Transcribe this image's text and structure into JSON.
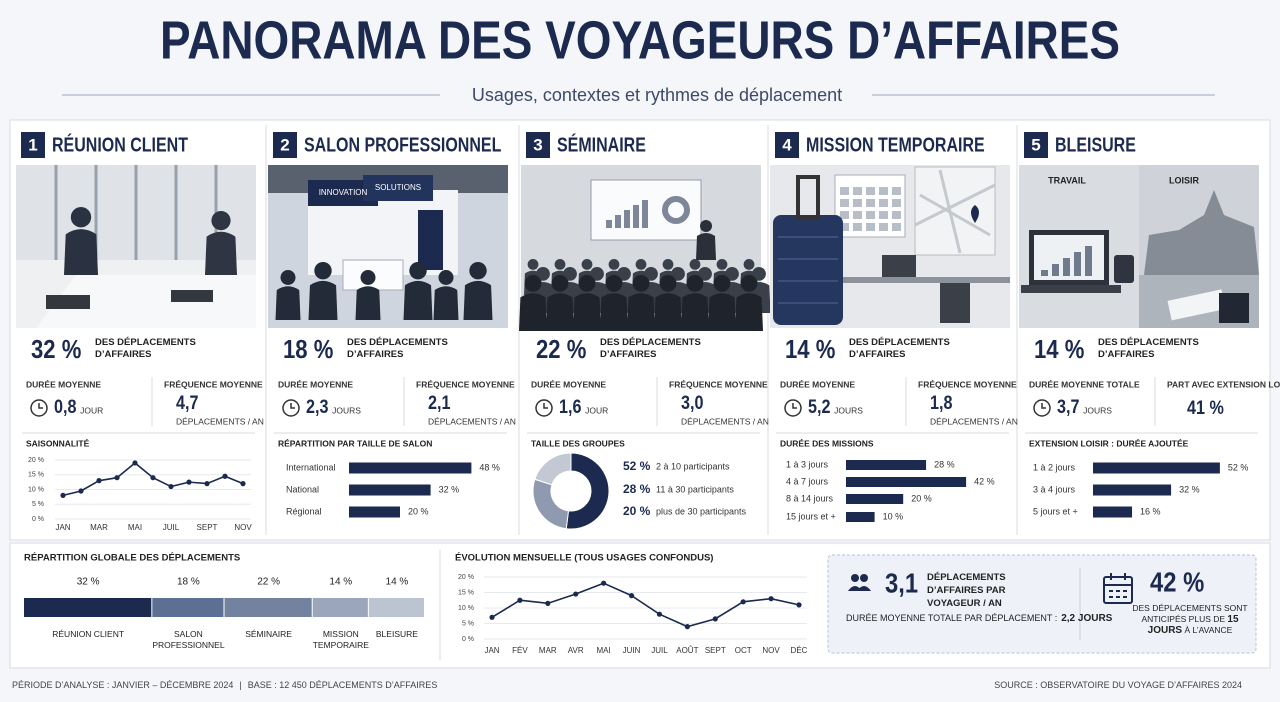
{
  "header": {
    "title": "PANORAMA DES VOYAGEURS D’AFFAIRES",
    "subtitle": "Usages, contextes et rythmes de déplacement"
  },
  "cards": [
    {
      "number": "1",
      "title": "RÉUNION CLIENT",
      "share": "32 %",
      "share_text": "DES DÉPLACEMENTS D’AFFAIRES",
      "stats": [
        {
          "label": "DURÉE MOYENNE",
          "value": "0,8",
          "unit": "JOUR"
        },
        {
          "label": "FRÉQUENCE MOYENNE",
          "value": "4,7",
          "unit": "DÉPLACEMENTS / AN"
        }
      ],
      "chart": {
        "type": "line",
        "title": "SAISONNALITÉ",
        "categories": [
          "JAN",
          null,
          "MAR",
          null,
          "MAI",
          null,
          "JUIL",
          null,
          "SEPT",
          null,
          "NOV"
        ],
        "values": [
          8,
          9.5,
          13,
          14,
          19,
          14,
          11,
          12.5,
          12,
          14.5,
          12
        ],
        "color": "#1b2a4e",
        "ylim": [
          0,
          20
        ],
        "yticks": [
          {
            "value": 0,
            "label": "0 %"
          },
          {
            "value": 5,
            "label": "5 %"
          },
          {
            "value": 10,
            "label": "10 %"
          },
          {
            "value": 15,
            "label": "15 %"
          },
          {
            "value": 20,
            "label": "20 %"
          }
        ]
      }
    },
    {
      "number": "2",
      "title": "SALON PROFESSIONNEL",
      "share": "18 %",
      "share_text": "DES DÉPLACEMENTS D’AFFAIRES",
      "image_labels": [
        "INNOVATION",
        "SOLUTIONS"
      ],
      "stats": [
        {
          "label": "DURÉE MOYENNE",
          "value": "2,3",
          "unit": "JOURS"
        },
        {
          "label": "FRÉQUENCE MOYENNE",
          "value": "2,1",
          "unit": "DÉPLACEMENTS / AN"
        }
      ],
      "chart": {
        "type": "hbar",
        "title": "RÉPARTITION PAR TAILLE DE SALON",
        "categories": [
          "International",
          "National",
          "Régional"
        ],
        "values": [
          48,
          32,
          20
        ],
        "value_labels": [
          "48 %",
          "32 %",
          "20 %"
        ],
        "color": "#1b2a4e"
      }
    },
    {
      "number": "3",
      "title": "SÉMINAIRE",
      "share": "22 %",
      "share_text": "DES DÉPLACEMENTS D’AFFAIRES",
      "stats": [
        {
          "label": "DURÉE MOYENNE",
          "value": "1,6",
          "unit": "JOUR"
        },
        {
          "label": "FRÉQUENCE MOYENNE",
          "value": "3,0",
          "unit": "DÉPLACEMENTS / AN"
        }
      ],
      "chart": {
        "type": "donut",
        "title": "TAILLE DES GROUPES",
        "categories": [
          "2 à 10 participants",
          "11 à 30 participants",
          "plus de 30 participants"
        ],
        "values": [
          52,
          28,
          20
        ],
        "value_labels": [
          "52 %",
          "28 %",
          "20 %"
        ],
        "colors": [
          "#1b2a4e",
          "#8f9ab0",
          "#c3c9d4"
        ]
      }
    },
    {
      "number": "4",
      "title": "MISSION TEMPORAIRE",
      "share": "14 %",
      "share_text": "DES DÉPLACEMENTS D’AFFAIRES",
      "stats": [
        {
          "label": "DURÉE MOYENNE",
          "value": "5,2",
          "unit": "JOURS"
        },
        {
          "label": "FRÉQUENCE MOYENNE",
          "value": "1,8",
          "unit": "DÉPLACEMENTS / AN"
        }
      ],
      "chart": {
        "type": "hbar",
        "title": "DURÉE DES MISSIONS",
        "categories": [
          "1 à 3 jours",
          "4 à 7 jours",
          "8 à 14 jours",
          "15 jours et +"
        ],
        "values": [
          28,
          42,
          20,
          10
        ],
        "value_labels": [
          "28 %",
          "42 %",
          "20 %",
          "10 %"
        ],
        "color": "#1b2a4e"
      }
    },
    {
      "number": "5",
      "title": "BLEISURE",
      "share": "14 %",
      "share_text": "DES DÉPLACEMENTS D’AFFAIRES",
      "image_labels": [
        "TRAVAIL",
        "LOISIR"
      ],
      "stats": [
        {
          "label": "DURÉE MOYENNE TOTALE",
          "value": "3,7",
          "unit": "JOURS"
        },
        {
          "label": "PART AVEC EXTENSION LOISIR",
          "value": "41 %"
        }
      ],
      "chart": {
        "type": "hbar",
        "title": "EXTENSION LOISIR : DURÉE AJOUTÉE",
        "categories": [
          "1 à 2 jours",
          "3 à 4 jours",
          "5 jours et +"
        ],
        "values": [
          52,
          32,
          16
        ],
        "value_labels": [
          "52 %",
          "32 %",
          "16 %"
        ],
        "color": "#1b2a4e"
      }
    }
  ],
  "global": {
    "type": "stacked_bar",
    "title": "RÉPARTITION GLOBALE DES DÉPLACEMENTS",
    "categories": [
      "RÉUNION CLIENT",
      "SALON PROFESSIONNEL",
      "SÉMINAIRE",
      "MISSION TEMPORAIRE",
      "BLEISURE"
    ],
    "values": [
      32,
      18,
      22,
      14,
      14
    ],
    "value_labels": [
      "32 %",
      "18 %",
      "22 %",
      "14 %",
      "14 %"
    ],
    "colors": [
      "#1b2a4e",
      "#5d6f93",
      "#73839f",
      "#9ba6bb",
      "#bcc3d1"
    ]
  },
  "monthly": {
    "type": "line",
    "title": "ÉVOLUTION MENSUELLE (TOUS USAGES CONFONDUS)",
    "categories": [
      "JAN",
      "FÉV",
      "MAR",
      "AVR",
      "MAI",
      "JUIN",
      "JUIL",
      "AOÛT",
      "SEPT",
      "OCT",
      "NOV",
      "DÉC"
    ],
    "values": [
      7,
      12.5,
      11.5,
      14.5,
      18,
      14,
      8,
      4,
      6.5,
      12,
      13,
      11
    ],
    "color": "#1b2a4e",
    "ylim": [
      0,
      20
    ],
    "yticks": [
      {
        "value": 0,
        "label": "0 %"
      },
      {
        "value": 5,
        "label": "5 %"
      },
      {
        "value": 10,
        "label": "10 %"
      },
      {
        "value": 15,
        "label": "15 %"
      },
      {
        "value": 20,
        "label": "20 %"
      }
    ]
  },
  "kpis": [
    {
      "value": "3,1",
      "text": "DÉPLACEMENTS D’AFFAIRES PAR VOYAGEUR / AN",
      "note_label": "DURÉE MOYENNE TOTALE PAR DÉPLACEMENT :",
      "note_value": "2,2 JOURS"
    },
    {
      "value": "42 %",
      "text": "DES DÉPLACEMENTS SONT ANTICIPÉS PLUS DE",
      "text_bold": "15 JOURS",
      "text_end": "À L’AVANCE"
    }
  ],
  "footer": {
    "period": "PÉRIODE D’ANALYSE : JANVIER – DÉCEMBRE 2024",
    "separator": "|",
    "base": "BASE : 12 450 DÉPLACEMENTS D’AFFAIRES",
    "source": "SOURCE : OBSERVATOIRE DU VOYAGE D’AFFAIRES 2024"
  }
}
